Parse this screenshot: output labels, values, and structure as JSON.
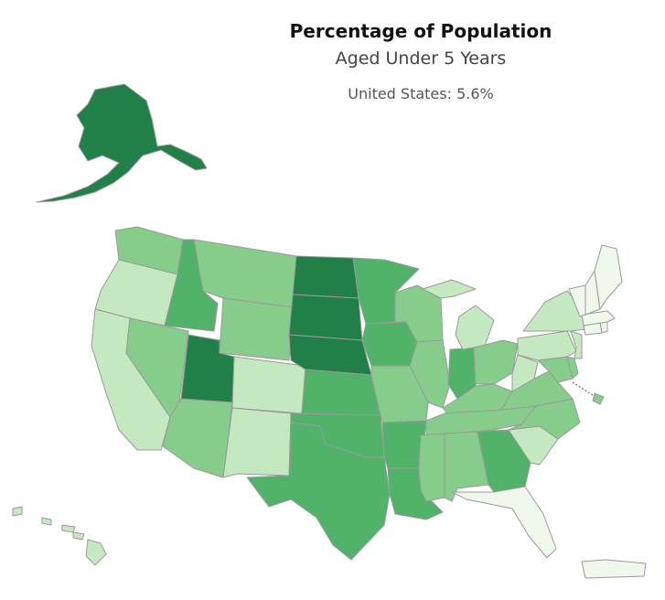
{
  "title": "Percentage of Population",
  "subtitle": "Aged Under 5 Years",
  "national_label": "United States: 5.6%",
  "legend_colors": {
    "lowest": "#f0f8ec",
    "low": "#c4e8c0",
    "mid": "#86cd8b",
    "high": "#51b26a",
    "highest": "#218047"
  },
  "states": [
    {
      "name": "WA",
      "level": "mid"
    },
    {
      "name": "OR",
      "level": "low"
    },
    {
      "name": "CA",
      "level": "low"
    },
    {
      "name": "ID",
      "level": "high"
    },
    {
      "name": "NV",
      "level": "mid"
    },
    {
      "name": "MT",
      "level": "mid"
    },
    {
      "name": "WY",
      "level": "mid"
    },
    {
      "name": "UT",
      "level": "highest"
    },
    {
      "name": "AZ",
      "level": "mid"
    },
    {
      "name": "CO",
      "level": "low"
    },
    {
      "name": "NM",
      "level": "low"
    },
    {
      "name": "ND",
      "level": "highest"
    },
    {
      "name": "SD",
      "level": "highest"
    },
    {
      "name": "NE",
      "level": "highest"
    },
    {
      "name": "KS",
      "level": "high"
    },
    {
      "name": "OK",
      "level": "high"
    },
    {
      "name": "TX",
      "level": "high"
    },
    {
      "name": "MN",
      "level": "high"
    },
    {
      "name": "IA",
      "level": "high"
    },
    {
      "name": "MO",
      "level": "mid"
    },
    {
      "name": "AR",
      "level": "high"
    },
    {
      "name": "LA",
      "level": "high"
    },
    {
      "name": "WI",
      "level": "mid"
    },
    {
      "name": "IL",
      "level": "mid"
    },
    {
      "name": "IN",
      "level": "high"
    },
    {
      "name": "MI",
      "level": "low"
    },
    {
      "name": "OH",
      "level": "mid"
    },
    {
      "name": "KY",
      "level": "mid"
    },
    {
      "name": "TN",
      "level": "mid"
    },
    {
      "name": "MS",
      "level": "mid"
    },
    {
      "name": "AL",
      "level": "mid"
    },
    {
      "name": "GA",
      "level": "high"
    },
    {
      "name": "FL",
      "level": "lowest"
    },
    {
      "name": "SC",
      "level": "low"
    },
    {
      "name": "NC",
      "level": "mid"
    },
    {
      "name": "VA",
      "level": "mid"
    },
    {
      "name": "WV",
      "level": "low"
    },
    {
      "name": "MD",
      "level": "mid"
    },
    {
      "name": "DE",
      "level": "mid"
    },
    {
      "name": "DC",
      "level": "mid"
    },
    {
      "name": "PA",
      "level": "low"
    },
    {
      "name": "NJ",
      "level": "low"
    },
    {
      "name": "NY",
      "level": "low"
    },
    {
      "name": "CT",
      "level": "lowest"
    },
    {
      "name": "RI",
      "level": "lowest"
    },
    {
      "name": "MA",
      "level": "lowest"
    },
    {
      "name": "VT",
      "level": "lowest"
    },
    {
      "name": "NH",
      "level": "lowest"
    },
    {
      "name": "ME",
      "level": "lowest"
    },
    {
      "name": "AK",
      "level": "highest"
    },
    {
      "name": "HI",
      "level": "low"
    },
    {
      "name": "PR",
      "level": "lowest"
    }
  ]
}
